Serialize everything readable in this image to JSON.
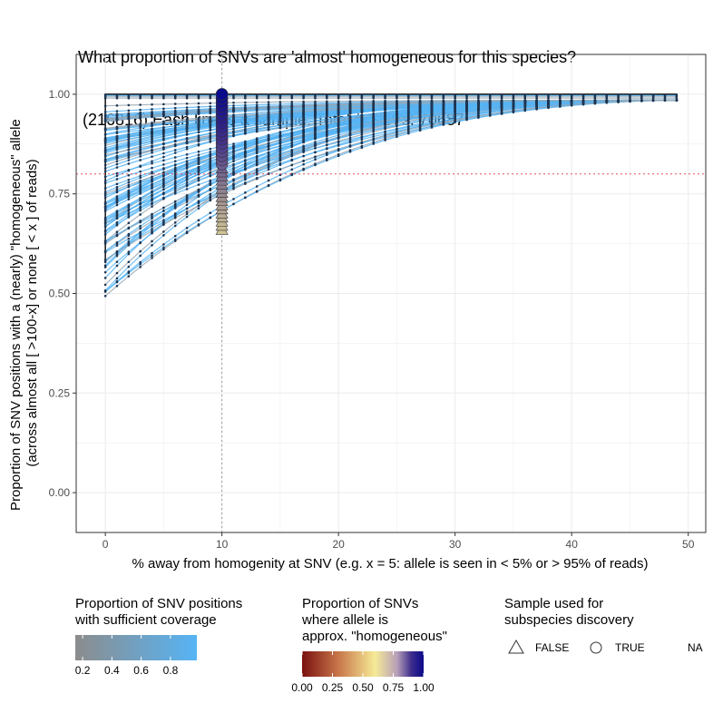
{
  "title_line1": "What proportion of SNVs are 'almost' homogeneous for this species?",
  "title_line2": " (216816) Each line is a sample. Total # SNVs: 70687",
  "chart_data": {
    "type": "line",
    "xlabel": "% away from homogenity at SNV (e.g. x = 5: allele is seen in < 5% or > 95% of reads)",
    "ylabel_line1": "Proportion of SNV positions with a (nearly) \"homogeneous\" allele",
    "ylabel_line2": "(across almost all [ >100-x] or none [ < x ] of reads)",
    "xlim": [
      -2.5,
      51.5
    ],
    "ylim": [
      -0.1,
      1.1
    ],
    "x_ticks": [
      0,
      10,
      20,
      30,
      40,
      50
    ],
    "x_tick_labels": [
      "0",
      "10",
      "20",
      "30",
      "40",
      "50"
    ],
    "y_ticks": [
      0.0,
      0.25,
      0.5,
      0.75,
      1.0
    ],
    "y_tick_labels": [
      "0.00",
      "0.25",
      "0.50",
      "0.75",
      "1.00"
    ],
    "x_points": [
      0,
      1,
      2,
      3,
      4,
      5,
      6,
      7,
      8,
      9,
      10,
      11,
      12,
      13,
      14,
      15,
      16,
      17,
      18,
      19,
      20,
      21,
      22,
      23,
      24,
      25,
      26,
      27,
      28,
      29,
      30,
      31,
      32,
      33,
      34,
      35,
      36,
      37,
      38,
      39,
      40,
      41,
      42,
      43,
      44,
      45,
      46,
      47,
      48,
      49
    ],
    "vertical_reference_x": 10,
    "horizontal_reference_y": 0.8,
    "approx_num_samples": 100,
    "sample_value_at_x0_range": [
      0.475,
      1.0
    ],
    "sample_value_at_x49": 0.985,
    "grid": true,
    "highlight_x": 10,
    "highlight_value_range": [
      0.66,
      1.0
    ]
  },
  "legend_coverage": {
    "title": "Proportion of SNV positions\nwith sufficient coverage",
    "tick_labels": [
      "0.2",
      "0.4",
      "0.6",
      "0.8"
    ],
    "tick_values": [
      0.2,
      0.4,
      0.6,
      0.8
    ],
    "range": [
      0.15,
      0.98
    ],
    "color_low": "#8c8c8c",
    "color_high": "#56b4f5"
  },
  "legend_homogeneous": {
    "title": "Proportion of SNVs\nwhere allele is\napprox. \"homogeneous\"",
    "tick_labels": [
      "0.00",
      "0.25",
      "0.50",
      "0.75",
      "1.00"
    ],
    "tick_values": [
      0,
      0.25,
      0.5,
      0.75,
      1.0
    ],
    "colors": [
      "#7a1010",
      "#c8774a",
      "#f6ea96",
      "#3d2c8c",
      "#0b0a8a"
    ]
  },
  "legend_shape": {
    "title": "Sample used for\nsubspecies discovery",
    "items": [
      {
        "symbol": "triangle",
        "label": "FALSE"
      },
      {
        "symbol": "circle",
        "label": "TRUE"
      },
      {
        "symbol": "none",
        "label": "NA"
      }
    ]
  },
  "colors": {
    "panel_grid": "#ebebeb",
    "line_default": "#56b4f5",
    "point": "#1f3550",
    "hline": "#e0505a",
    "vline": "#999999"
  }
}
